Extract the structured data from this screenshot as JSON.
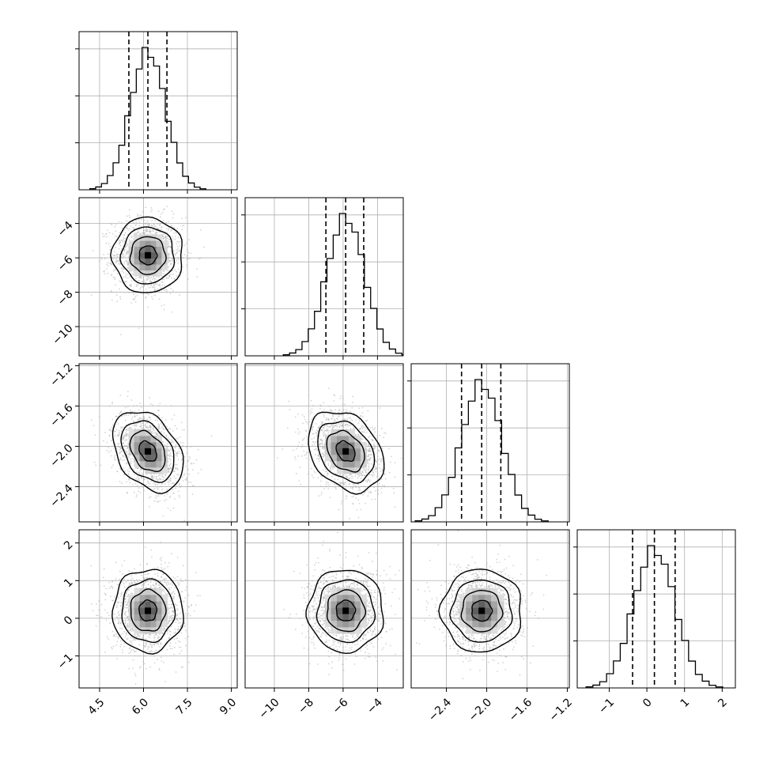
{
  "chart_data": {
    "type": "corner",
    "n_params": 4,
    "axis_titles": [
      "",
      "",
      "",
      ""
    ],
    "ranges": [
      [
        3.8,
        9.2
      ],
      [
        -11.7,
        -2.5
      ],
      [
        -2.75,
        -1.18
      ],
      [
        -1.85,
        2.35
      ]
    ],
    "ticks": [
      [
        4.5,
        6.0,
        7.5,
        9.0
      ],
      [
        -10,
        -8,
        -6,
        -4
      ],
      [
        -2.4,
        -2.0,
        -1.6,
        -1.2
      ],
      [
        -1,
        0,
        1,
        2
      ]
    ],
    "tick_labels": [
      [
        "4.5",
        "6.0",
        "7.5",
        "9.0"
      ],
      [
        "−10",
        "−8",
        "−6",
        "−4"
      ],
      [
        "−2.4",
        "−2.0",
        "−1.6",
        "−1.2"
      ],
      [
        "−1",
        "0",
        "1",
        "2"
      ]
    ],
    "y_ticks": [
      [],
      [
        -10,
        -8,
        -6,
        -4
      ],
      [
        -2.4,
        -2.0,
        -1.6,
        -1.2
      ],
      [
        -1,
        0,
        1,
        2
      ]
    ],
    "y_tick_labels": [
      [],
      [
        "−10",
        "−8",
        "−6",
        "−4"
      ],
      [
        "−2.4",
        "−2.0",
        "−1.6",
        "−1.2"
      ],
      [
        "−1",
        "0",
        "1",
        "2"
      ]
    ],
    "means": [
      6.15,
      -5.85,
      -2.05,
      0.2
    ],
    "sigmas": [
      0.6,
      1.1,
      0.2,
      0.55
    ],
    "quantiles": [
      [
        5.5,
        6.15,
        6.8
      ],
      [
        -7.0,
        -5.85,
        -4.8
      ],
      [
        -2.25,
        -2.05,
        -1.86
      ],
      [
        -0.38,
        0.2,
        0.75
      ]
    ],
    "correlations": {
      "0-1": 0.0,
      "0-2": -0.35,
      "1-2": -0.3,
      "0-3": 0.0,
      "1-3": 0.0,
      "2-3": 0.0
    },
    "histogram_bins": 20,
    "contour_levels_sigma": [
      0.5,
      1.0,
      1.5,
      2.0
    ],
    "grid": true,
    "colors": {
      "line": "#000000",
      "samples": "#b0b0b0",
      "grid": "#b0b0b0",
      "frame": "#000000"
    }
  }
}
